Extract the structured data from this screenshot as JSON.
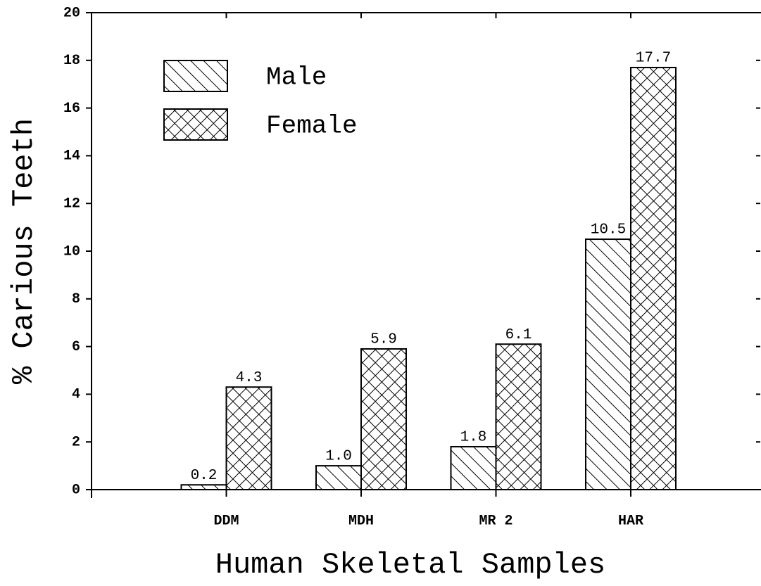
{
  "chart_data": {
    "type": "bar",
    "xlabel": "Human Skeletal Samples",
    "ylabel": "% Carious Teeth",
    "categories": [
      "DDM",
      "MDH",
      "MR 2",
      "HAR"
    ],
    "series": [
      {
        "name": "Male",
        "color": "#000000",
        "hatch": "diagonal",
        "values": [
          0.2,
          1.0,
          1.8,
          10.5
        ],
        "value_labels": [
          "0.2",
          "1.0",
          "1.8",
          "10.5"
        ]
      },
      {
        "name": "Female",
        "color": "#000000",
        "hatch": "crosshatch",
        "values": [
          4.3,
          5.9,
          6.1,
          17.7
        ],
        "value_labels": [
          "4.3",
          "5.9",
          "6.1",
          "17.7"
        ]
      }
    ],
    "ylim": [
      0,
      20
    ],
    "yticks": [
      0,
      2,
      4,
      6,
      8,
      10,
      12,
      14,
      16,
      18,
      20
    ],
    "legend": "upper left"
  }
}
